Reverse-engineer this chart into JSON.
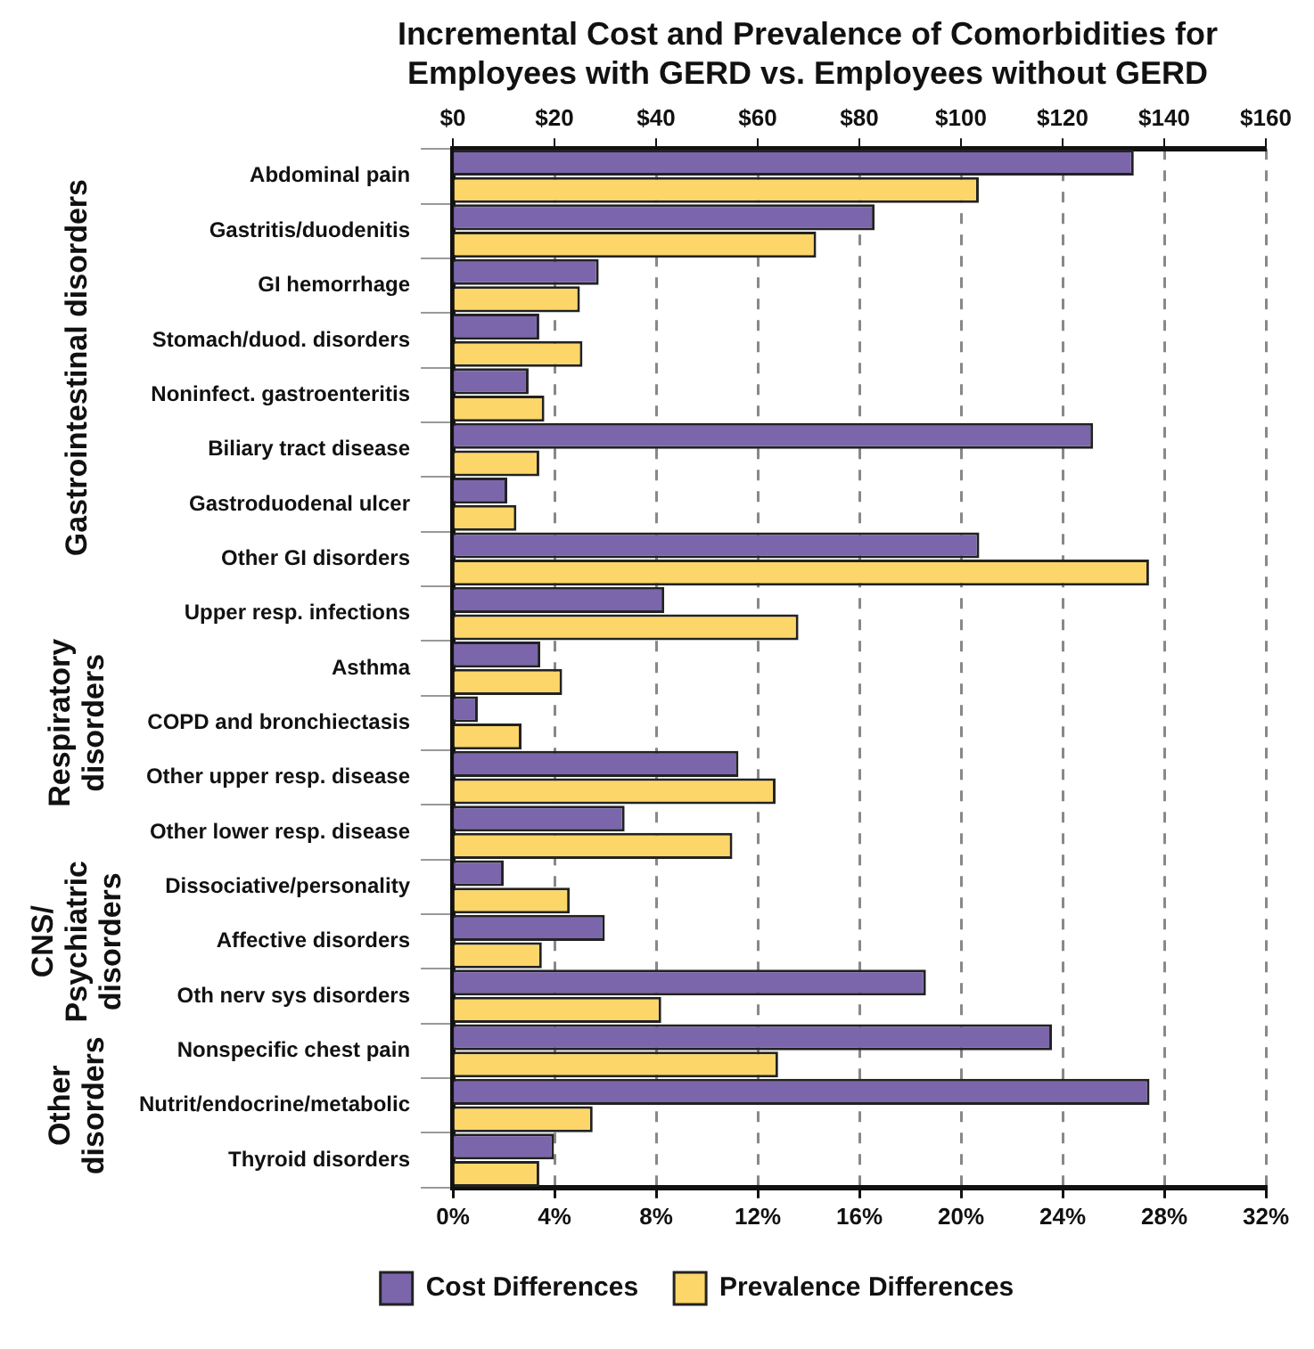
{
  "chart_data": {
    "type": "bar",
    "orientation": "horizontal",
    "title": "Incremental Cost and Prevalence of Comorbidities for Employees with GERD vs. Employees without GERD",
    "categories": [
      "Abdominal pain",
      "Gastritis/duodenitis",
      "GI hemorrhage",
      "Stomach/duod. disorders",
      "Noninfect. gastroenteritis",
      "Biliary tract disease",
      "Gastroduodenal ulcer",
      "Other GI disorders",
      "Upper resp. infections",
      "Asthma",
      "COPD and bronchiectasis",
      "Other upper resp. disease",
      "Other lower resp. disease",
      "Dissociative/personality",
      "Affective disorders",
      "Oth nerv sys disorders",
      "Nonspecific chest pain",
      "Nutrit/endocrine/metabolic",
      "Thyroid disorders"
    ],
    "series": [
      {
        "name": "Cost Differences",
        "color": "#7b66ab",
        "axis": "x2",
        "values": [
          134,
          83,
          28.7,
          17,
          14.9,
          126,
          10.7,
          103.6,
          41.6,
          17.2,
          4.9,
          56.2,
          33.8,
          10,
          29.9,
          93.1,
          117.9,
          137.1,
          19.9
        ]
      },
      {
        "name": "Prevalence Differences",
        "color": "#fcd668",
        "values": [
          20.7,
          14.3,
          5.0,
          5.1,
          3.6,
          3.4,
          2.5,
          27.4,
          13.6,
          4.3,
          2.7,
          12.7,
          11.0,
          4.6,
          3.5,
          8.2,
          12.8,
          5.5,
          3.4
        ]
      }
    ],
    "xlim": [
      0,
      32
    ],
    "xticks": [
      {
        "value": 0,
        "label": "0%"
      },
      {
        "value": 4,
        "label": "4%"
      },
      {
        "value": 8,
        "label": "8%"
      },
      {
        "value": 12,
        "label": "12%"
      },
      {
        "value": 16,
        "label": "16%"
      },
      {
        "value": 20,
        "label": "20%"
      },
      {
        "value": 24,
        "label": "24%"
      },
      {
        "value": 28,
        "label": "28%"
      },
      {
        "value": 32,
        "label": "32%"
      }
    ],
    "x2lim": [
      0,
      160
    ],
    "x2ticks": [
      {
        "value": 0,
        "label": "$0"
      },
      {
        "value": 20,
        "label": "$20"
      },
      {
        "value": 40,
        "label": "$40"
      },
      {
        "value": 60,
        "label": "$60"
      },
      {
        "value": 80,
        "label": "$80"
      },
      {
        "value": 100,
        "label": "$100"
      },
      {
        "value": 120,
        "label": "$120"
      },
      {
        "value": 140,
        "label": "$140"
      },
      {
        "value": 160,
        "label": "$160"
      }
    ],
    "annotations": [
      "Gastrointestinal disorders",
      "Respiratory disorders",
      "CNS/ Psychiatric disorders",
      "Other disorders"
    ],
    "grid": "x",
    "legend": "bottom"
  }
}
